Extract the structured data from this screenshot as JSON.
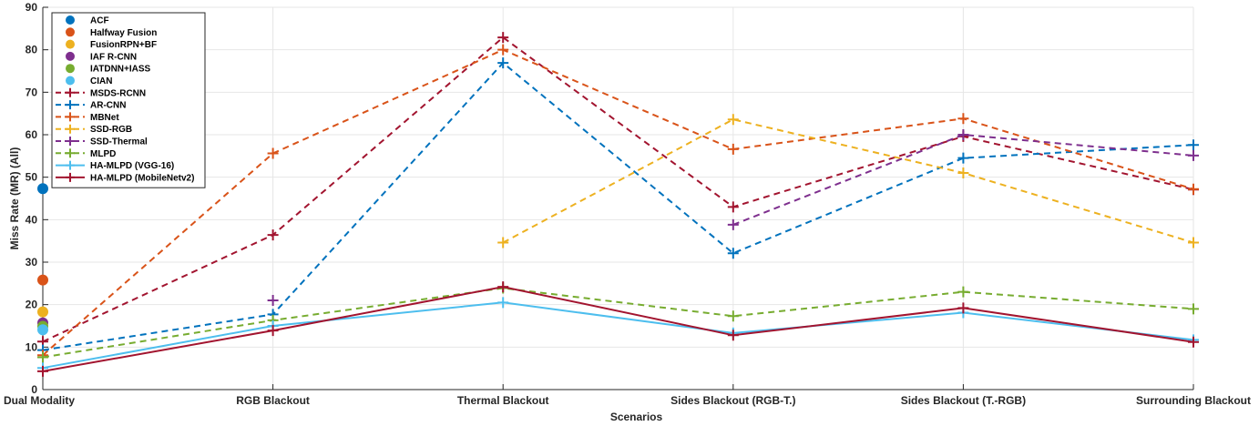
{
  "chart_data": {
    "type": "line",
    "title": "",
    "xlabel": "Scenarios",
    "ylabel": "Miss Rate (MR) (All)",
    "categories": [
      "Dual Modality",
      "RGB Blackout",
      "Thermal Blackout",
      "Sides Blackout (RGB-T.)",
      "Sides Blackout (T.-RGB)",
      "Surrounding Blackout"
    ],
    "ylim": [
      0,
      90
    ],
    "yticks": [
      0,
      10,
      20,
      30,
      40,
      50,
      60,
      70,
      80,
      90
    ],
    "grid": true,
    "legend_position": "top-left",
    "series": [
      {
        "name": "ACF",
        "marker": "dot",
        "style": "none",
        "color": "#0072BD",
        "values": [
          47.3,
          null,
          null,
          null,
          null,
          null
        ]
      },
      {
        "name": "Halfway Fusion",
        "marker": "dot",
        "style": "none",
        "color": "#D95319",
        "values": [
          25.8,
          null,
          null,
          null,
          null,
          null
        ]
      },
      {
        "name": "FusionRPN+BF",
        "marker": "dot",
        "style": "none",
        "color": "#EDB120",
        "values": [
          18.3,
          null,
          null,
          null,
          null,
          null
        ]
      },
      {
        "name": "IAF R-CNN",
        "marker": "dot",
        "style": "none",
        "color": "#7E2F8E",
        "values": [
          15.7,
          null,
          null,
          null,
          null,
          null
        ]
      },
      {
        "name": "IATDNN+IASS",
        "marker": "dot",
        "style": "none",
        "color": "#77AC30",
        "values": [
          14.9,
          null,
          null,
          null,
          null,
          null
        ]
      },
      {
        "name": "CIAN",
        "marker": "dot",
        "style": "none",
        "color": "#4DBEEE",
        "values": [
          14.1,
          null,
          null,
          null,
          null,
          null
        ]
      },
      {
        "name": "MSDS-RCNN",
        "marker": "plus",
        "style": "dashed",
        "color": "#A2142F",
        "values": [
          11.3,
          36.4,
          82.9,
          43.0,
          59.6,
          47.1
        ]
      },
      {
        "name": "AR-CNN",
        "marker": "plus",
        "style": "dashed",
        "color": "#0072BD",
        "values": [
          9.3,
          17.7,
          76.9,
          32.1,
          54.5,
          57.6
        ]
      },
      {
        "name": "MBNet",
        "marker": "plus",
        "style": "dashed",
        "color": "#D95319",
        "values": [
          8.1,
          55.6,
          80.0,
          56.6,
          63.8,
          47.2
        ]
      },
      {
        "name": "SSD-RGB",
        "marker": "plus",
        "style": "dashed",
        "color": "#EDB120",
        "values": [
          null,
          null,
          34.6,
          63.6,
          51.0,
          34.6
        ]
      },
      {
        "name": "SSD-Thermal",
        "marker": "plus",
        "style": "dashed",
        "color": "#7E2F8E",
        "values": [
          null,
          21.0,
          null,
          38.8,
          60.0,
          55.1
        ]
      },
      {
        "name": "MLPD",
        "marker": "plus",
        "style": "dashed",
        "color": "#77AC30",
        "values": [
          7.6,
          16.3,
          23.9,
          17.3,
          23.0,
          19.0
        ]
      },
      {
        "name": "HA-MLPD (VGG-16)",
        "marker": "plus",
        "style": "solid",
        "color": "#4DBEEE",
        "values": [
          5.1,
          15.0,
          20.5,
          13.3,
          18.1,
          11.7
        ]
      },
      {
        "name": "HA-MLPD (MobileNetv2)",
        "marker": "plus",
        "style": "solid",
        "color": "#A2142F",
        "values": [
          4.3,
          13.9,
          24.2,
          12.8,
          19.2,
          11.2
        ]
      }
    ]
  }
}
